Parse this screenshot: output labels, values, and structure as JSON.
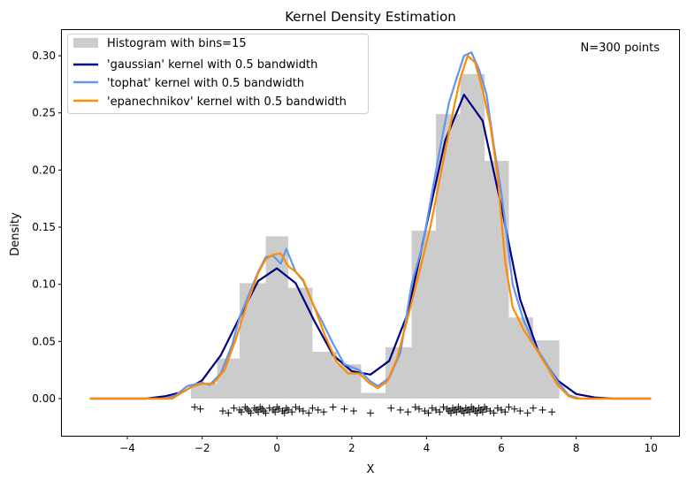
{
  "chart_data": {
    "type": "line",
    "title": "Kernel Density Estimation",
    "xlabel": "X",
    "ylabel": "Density",
    "xlim": [
      -5.75,
      10.75
    ],
    "ylim": [
      -0.0325,
      0.3225
    ],
    "xticks": [
      -4,
      -2,
      0,
      2,
      4,
      6,
      8,
      10
    ],
    "yticks": [
      0.0,
      0.05,
      0.1,
      0.15,
      0.2,
      0.25,
      0.3
    ],
    "xtick_labels": [
      "−4",
      "−2",
      "0",
      "2",
      "4",
      "6",
      "8",
      "10"
    ],
    "ytick_labels": [
      "0.00",
      "0.05",
      "0.10",
      "0.15",
      "0.20",
      "0.25",
      "0.30"
    ],
    "annotation": "N=300 points",
    "legend_position": "top-left",
    "grid": false,
    "histogram": {
      "name": "Histogram with bins=15",
      "color": "#cccccc",
      "bin_edges": [
        -2.3,
        -1.6,
        -1.0,
        -0.3,
        0.3,
        0.95,
        1.6,
        2.25,
        2.9,
        3.6,
        4.25,
        4.9,
        5.55,
        6.2,
        6.85,
        7.55
      ],
      "values": [
        0.013,
        0.035,
        0.101,
        0.142,
        0.097,
        0.041,
        0.03,
        0.005,
        0.045,
        0.147,
        0.249,
        0.284,
        0.208,
        0.071,
        0.051
      ]
    },
    "series": [
      {
        "name": "'gaussian' kernel with 0.5 bandwidth",
        "color": "#000080",
        "x": [
          -5,
          -3.5,
          -3,
          -2.5,
          -2,
          -1.5,
          -1,
          -0.5,
          0,
          0.5,
          1,
          1.5,
          2,
          2.5,
          3,
          3.5,
          4,
          4.5,
          5,
          5.5,
          6,
          6.5,
          7,
          7.5,
          8,
          8.5,
          9,
          10
        ],
        "y": [
          0,
          0,
          0.002,
          0.006,
          0.016,
          0.038,
          0.071,
          0.103,
          0.114,
          0.101,
          0.068,
          0.038,
          0.024,
          0.021,
          0.033,
          0.075,
          0.152,
          0.226,
          0.266,
          0.243,
          0.168,
          0.087,
          0.04,
          0.016,
          0.004,
          0.001,
          0,
          0
        ]
      },
      {
        "name": "'tophat' kernel with 0.5 bandwidth",
        "color": "#6495ed",
        "x": [
          -5,
          -3,
          -2.7,
          -2.4,
          -2,
          -1.8,
          -1.5,
          -1.2,
          -1,
          -0.7,
          -0.5,
          -0.3,
          -0.1,
          0.1,
          0.25,
          0.5,
          0.7,
          1,
          1.2,
          1.5,
          1.8,
          2.2,
          2.5,
          2.7,
          3,
          3.3,
          3.6,
          3.9,
          4.2,
          4.4,
          4.6,
          4.8,
          5,
          5.2,
          5.4,
          5.6,
          5.8,
          6,
          6.3,
          6.6,
          6.9,
          7.2,
          7.5,
          7.8,
          8.1,
          10
        ],
        "y": [
          0,
          0,
          0.003,
          0.011,
          0.014,
          0.012,
          0.022,
          0.047,
          0.071,
          0.095,
          0.111,
          0.124,
          0.125,
          0.118,
          0.131,
          0.111,
          0.103,
          0.08,
          0.068,
          0.048,
          0.03,
          0.025,
          0.015,
          0.011,
          0.018,
          0.04,
          0.1,
          0.135,
          0.19,
          0.226,
          0.259,
          0.28,
          0.3,
          0.303,
          0.288,
          0.267,
          0.221,
          0.18,
          0.1,
          0.068,
          0.046,
          0.031,
          0.015,
          0.003,
          0,
          0
        ]
      },
      {
        "name": "'epanechnikov' kernel with 0.5 bandwidth",
        "color": "#ff8c00",
        "x": [
          -5,
          -2.8,
          -2.6,
          -2.3,
          -2,
          -1.7,
          -1.4,
          -1.1,
          -0.8,
          -0.5,
          -0.3,
          -0.1,
          0.1,
          0.3,
          0.5,
          0.7,
          1,
          1.3,
          1.6,
          1.9,
          2.2,
          2.45,
          2.7,
          2.95,
          3.2,
          3.5,
          3.8,
          4.1,
          4.4,
          4.7,
          4.9,
          5.1,
          5.3,
          5.5,
          5.7,
          5.9,
          6.1,
          6.3,
          6.6,
          6.9,
          7.2,
          7.5,
          7.8,
          8,
          10
        ],
        "y": [
          0,
          0,
          0.004,
          0.01,
          0.013,
          0.013,
          0.025,
          0.052,
          0.083,
          0.11,
          0.122,
          0.126,
          0.127,
          0.116,
          0.111,
          0.104,
          0.08,
          0.054,
          0.032,
          0.022,
          0.022,
          0.014,
          0.009,
          0.015,
          0.034,
          0.071,
          0.11,
          0.15,
          0.2,
          0.25,
          0.28,
          0.3,
          0.294,
          0.27,
          0.24,
          0.195,
          0.12,
          0.08,
          0.06,
          0.045,
          0.029,
          0.012,
          0.002,
          0,
          0
        ]
      }
    ],
    "samples_y": -0.01,
    "samples_x": [
      -2.2,
      -2.05,
      -1.45,
      -1.3,
      -1.15,
      -1.0,
      -0.95,
      -0.85,
      -0.8,
      -0.75,
      -0.7,
      -0.6,
      -0.55,
      -0.5,
      -0.45,
      -0.4,
      -0.35,
      -0.3,
      -0.2,
      -0.1,
      -0.05,
      0.0,
      0.05,
      0.15,
      0.2,
      0.25,
      0.3,
      0.4,
      0.5,
      0.6,
      0.7,
      0.85,
      0.95,
      1.1,
      1.25,
      1.5,
      1.8,
      2.05,
      2.5,
      3.05,
      3.3,
      3.5,
      3.7,
      3.8,
      3.95,
      4.05,
      4.15,
      4.25,
      4.35,
      4.45,
      4.55,
      4.6,
      4.65,
      4.7,
      4.75,
      4.8,
      4.85,
      4.9,
      4.95,
      5.0,
      5.05,
      5.1,
      5.15,
      5.2,
      5.25,
      5.3,
      5.35,
      5.4,
      5.45,
      5.5,
      5.55,
      5.6,
      5.7,
      5.8,
      5.9,
      6.0,
      6.1,
      6.2,
      6.35,
      6.5,
      6.7,
      6.85,
      7.1,
      7.35
    ]
  }
}
